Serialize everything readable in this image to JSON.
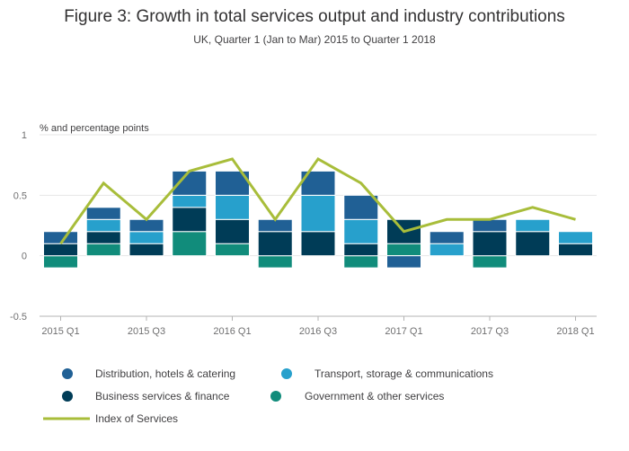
{
  "chart_data": {
    "type": "bar",
    "stacked": true,
    "title": "Figure 3: Growth in total services output and industry contributions",
    "subtitle": "UK, Quarter 1 (Jan to Mar) 2015 to Quarter 1 2018",
    "ylabel": "% and percentage points",
    "ylim": [
      -0.5,
      1
    ],
    "yticks": [
      {
        "value": 1,
        "label": "1"
      },
      {
        "value": 0.5,
        "label": "0.5"
      },
      {
        "value": 0,
        "label": "0"
      },
      {
        "value": -0.5,
        "label": "-0.5"
      }
    ],
    "categories": [
      "2015 Q1",
      "2015 Q2",
      "2015 Q3",
      "2015 Q4",
      "2016 Q1",
      "2016 Q2",
      "2016 Q3",
      "2016 Q4",
      "2017 Q1",
      "2017 Q2",
      "2017 Q3",
      "2017 Q4",
      "2018 Q1"
    ],
    "xtick_labels": [
      "2015 Q1",
      "",
      "2015 Q3",
      "",
      "2016 Q1",
      "",
      "2016 Q3",
      "",
      "2017 Q1",
      "",
      "2017 Q3",
      "",
      "2018 Q1"
    ],
    "grid": true,
    "legend_position": "bottom",
    "series": [
      {
        "name": "Government & other services",
        "kind": "bar",
        "color": "#118c7b",
        "values": [
          -0.1,
          0.1,
          0,
          0.2,
          0.1,
          -0.1,
          0,
          -0.1,
          0.1,
          0,
          -0.1,
          0,
          0
        ]
      },
      {
        "name": "Business services & finance",
        "kind": "bar",
        "color": "#003c57",
        "values": [
          0.1,
          0.1,
          0.1,
          0.2,
          0.2,
          0.2,
          0.2,
          0.1,
          0.2,
          0,
          0.2,
          0.2,
          0.1
        ]
      },
      {
        "name": "Transport, storage & communications",
        "kind": "bar",
        "color": "#27a0cc",
        "values": [
          0,
          0.1,
          0.1,
          0.1,
          0.2,
          0,
          0.3,
          0.2,
          0,
          0.1,
          0,
          0.1,
          0.1
        ]
      },
      {
        "name": "Distribution, hotels & catering",
        "kind": "bar",
        "color": "#206095",
        "values": [
          0.1,
          0.1,
          0.1,
          0.2,
          0.2,
          0.1,
          0.2,
          0.2,
          -0.1,
          0.1,
          0.1,
          0,
          0
        ]
      },
      {
        "name": "Index of Services",
        "kind": "line",
        "color": "#a8bd3a",
        "values": [
          0.1,
          0.6,
          0.3,
          0.7,
          0.8,
          0.3,
          0.8,
          0.6,
          0.2,
          0.3,
          0.3,
          0.4,
          0.3
        ]
      }
    ],
    "legend": [
      {
        "name": "Distribution, hotels & catering",
        "color": "#206095",
        "shape": "circle"
      },
      {
        "name": "Transport, storage & communications",
        "color": "#27a0cc",
        "shape": "circle"
      },
      {
        "name": "Business services & finance",
        "color": "#003c57",
        "shape": "circle"
      },
      {
        "name": "Government & other services",
        "color": "#118c7b",
        "shape": "circle"
      },
      {
        "name": "Index of Services",
        "color": "#a8bd3a",
        "shape": "line"
      }
    ]
  }
}
